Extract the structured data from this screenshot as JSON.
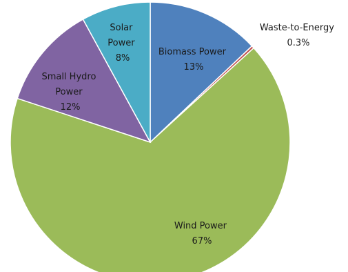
{
  "chart_data": {
    "type": "pie",
    "title": "",
    "slices": [
      {
        "label": "Biomass Power",
        "percent_label": "13%",
        "value": 13,
        "color": "#4f81bd"
      },
      {
        "label": "Waste-to-Energy",
        "percent_label": "0.3%",
        "value": 0.3,
        "color": "#c0504d"
      },
      {
        "label": "Wind Power",
        "percent_label": "67%",
        "value": 67,
        "color": "#9bbb59"
      },
      {
        "label": "Small Hydro Power",
        "percent_label": "12%",
        "value": 12,
        "color": "#8064a2"
      },
      {
        "label": "Solar Power",
        "percent_label": "8%",
        "value": 8,
        "color": "#4bacc6"
      }
    ],
    "start_angle": "12 o'clock",
    "direction": "clockwise",
    "legend": "none",
    "labels": "data labels with category name and percentage"
  }
}
